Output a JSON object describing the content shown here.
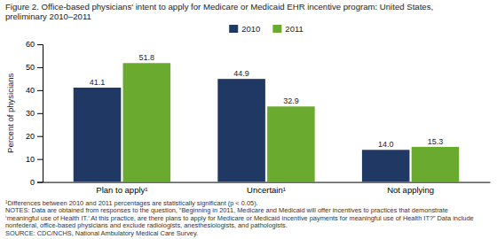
{
  "chart_data": {
    "type": "bar",
    "title": [
      "Figure 2. Office-based physicians' intent to apply for Medicare or Medicaid EHR incentive program: United States,",
      "preliminary 2010–2011"
    ],
    "categories": [
      "Plan to apply¹",
      "Uncertain¹",
      "Not applying"
    ],
    "series": [
      {
        "name": "2010",
        "color": "#1f3864",
        "values": [
          41.1,
          44.9,
          14.0
        ],
        "value_labels": [
          "41.1",
          "44.9",
          "14.0"
        ]
      },
      {
        "name": "2011",
        "color": "#6aaa2e",
        "values": [
          51.8,
          32.9,
          15.3
        ],
        "value_labels": [
          "51.8",
          "32.9",
          "15.3"
        ]
      }
    ],
    "ylabel": "Percent of physicians",
    "ylim": [
      0,
      60
    ],
    "yticks": [
      0,
      10,
      20,
      30,
      40,
      50,
      60
    ],
    "grid": false,
    "legend": "top",
    "data_labels": true,
    "annotations": [
      "¹Differences between 2010 and 2011 percentages are statistically significant (p < 0.05).",
      "NOTES: Data are obtained from responses to the question, “Beginning in 2011, Medicare and Medicaid will offer incentives to practices that demonstrate",
      "‘meaningful use of Health IT.’ At this practice, are there plans to apply for Medicare or Medicaid incentive payments for meaningful use of Health IT?” Data include",
      "nonfederal, office-based physicians and exclude radiologists, anesthesiologists, and pathologists.",
      "SOURCE: CDC/NCHS, National Ambulatory Medical Care Survey."
    ]
  }
}
